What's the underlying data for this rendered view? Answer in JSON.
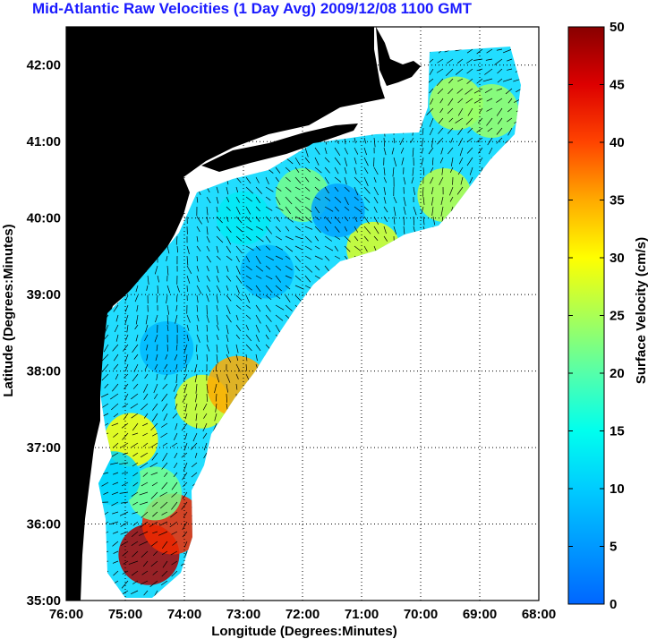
{
  "title": "Mid-Atlantic Raw Velocities (1 Day Avg) 2009/12/08 1100 GMT",
  "map": {
    "x_label": "Longitude (Degrees:Minutes)",
    "y_label": "Latitude (Degrees:Minutes)",
    "lon_range": [
      -76,
      -68
    ],
    "lat_range": [
      35,
      42.5
    ],
    "x_ticks": [
      "76:00",
      "75:00",
      "74:00",
      "73:00",
      "72:00",
      "71:00",
      "70:00",
      "69:00",
      "68:00"
    ],
    "y_ticks": [
      "35:00",
      "36:00",
      "37:00",
      "38:00",
      "39:00",
      "40:00",
      "41:00",
      "42:00"
    ],
    "land_color": "#55eeaa",
    "grid": "dotted"
  },
  "colorbar": {
    "label": "Surface Velocity (cm/s)",
    "ticks": [
      "0",
      "5",
      "10",
      "15",
      "20",
      "25",
      "30",
      "35",
      "40",
      "45",
      "50"
    ],
    "range": [
      0,
      50
    ],
    "colormap": "jet"
  },
  "chart_data": {
    "type": "heatmap",
    "title": "Mid-Atlantic Raw Velocities (1 Day Avg) 2009/12/08 1100 GMT",
    "xlabel": "Longitude (Degrees:Minutes)",
    "ylabel": "Latitude (Degrees:Minutes)",
    "xlim": [
      -76,
      -68
    ],
    "ylim": [
      35,
      42.5
    ],
    "value_range_cm_s": [
      0,
      50
    ],
    "velocity_regions": [
      {
        "lon": -74.6,
        "lat": 35.6,
        "speed": 48
      },
      {
        "lon": -74.2,
        "lat": 36.0,
        "speed": 42
      },
      {
        "lon": -74.9,
        "lat": 37.1,
        "speed": 30
      },
      {
        "lon": -73.7,
        "lat": 37.6,
        "speed": 28
      },
      {
        "lon": -73.1,
        "lat": 37.8,
        "speed": 35
      },
      {
        "lon": -74.5,
        "lat": 36.4,
        "speed": 22
      },
      {
        "lon": -69.4,
        "lat": 41.5,
        "speed": 25
      },
      {
        "lon": -68.8,
        "lat": 41.4,
        "speed": 24
      },
      {
        "lon": -69.6,
        "lat": 40.3,
        "speed": 26
      },
      {
        "lon": -70.8,
        "lat": 39.6,
        "speed": 28
      },
      {
        "lon": -72.0,
        "lat": 40.3,
        "speed": 22
      },
      {
        "lon": -71.4,
        "lat": 40.1,
        "speed": 6
      },
      {
        "lon": -72.6,
        "lat": 39.3,
        "speed": 8
      },
      {
        "lon": -74.3,
        "lat": 38.3,
        "speed": 8
      },
      {
        "lon": -73.0,
        "lat": 40.0,
        "speed": 13
      },
      {
        "lon": -75.2,
        "lat": 36.6,
        "speed": 11
      }
    ]
  }
}
